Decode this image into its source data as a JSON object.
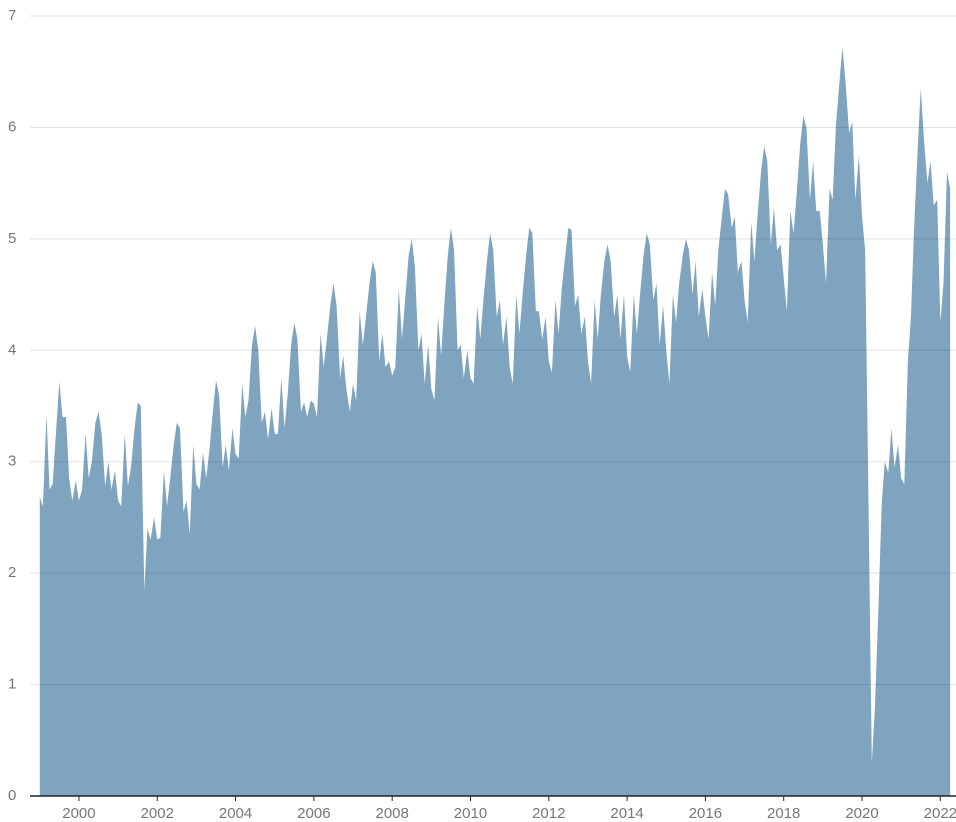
{
  "chart_data": {
    "type": "area",
    "color": "#7fa4c0",
    "grid": true,
    "xlim": [
      1998.75,
      2022.4
    ],
    "xticks": [
      2000,
      2002,
      2004,
      2006,
      2008,
      2010,
      2012,
      2014,
      2016,
      2018,
      2020,
      2022
    ],
    "ylim": [
      0,
      7
    ],
    "yticks": [
      0,
      1,
      2,
      3,
      4,
      5,
      6,
      7
    ],
    "x": [
      1999.0,
      1999.08,
      1999.17,
      1999.25,
      1999.33,
      1999.42,
      1999.5,
      1999.58,
      1999.67,
      1999.75,
      1999.83,
      1999.92,
      2000.0,
      2000.08,
      2000.17,
      2000.25,
      2000.33,
      2000.42,
      2000.5,
      2000.58,
      2000.67,
      2000.75,
      2000.83,
      2000.92,
      2001.0,
      2001.08,
      2001.17,
      2001.25,
      2001.33,
      2001.42,
      2001.5,
      2001.58,
      2001.67,
      2001.75,
      2001.83,
      2001.92,
      2002.0,
      2002.08,
      2002.17,
      2002.25,
      2002.33,
      2002.42,
      2002.5,
      2002.58,
      2002.67,
      2002.75,
      2002.83,
      2002.92,
      2003.0,
      2003.08,
      2003.17,
      2003.25,
      2003.33,
      2003.42,
      2003.5,
      2003.58,
      2003.67,
      2003.75,
      2003.83,
      2003.92,
      2004.0,
      2004.08,
      2004.17,
      2004.25,
      2004.33,
      2004.42,
      2004.5,
      2004.58,
      2004.67,
      2004.75,
      2004.83,
      2004.92,
      2005.0,
      2005.08,
      2005.17,
      2005.25,
      2005.33,
      2005.42,
      2005.5,
      2005.58,
      2005.67,
      2005.75,
      2005.83,
      2005.92,
      2006.0,
      2006.08,
      2006.17,
      2006.25,
      2006.33,
      2006.42,
      2006.5,
      2006.58,
      2006.67,
      2006.75,
      2006.83,
      2006.92,
      2007.0,
      2007.08,
      2007.17,
      2007.25,
      2007.33,
      2007.42,
      2007.5,
      2007.58,
      2007.67,
      2007.75,
      2007.83,
      2007.92,
      2008.0,
      2008.08,
      2008.17,
      2008.25,
      2008.33,
      2008.42,
      2008.5,
      2008.58,
      2008.67,
      2008.75,
      2008.83,
      2008.92,
      2009.0,
      2009.08,
      2009.17,
      2009.25,
      2009.33,
      2009.42,
      2009.5,
      2009.58,
      2009.67,
      2009.75,
      2009.83,
      2009.92,
      2010.0,
      2010.08,
      2010.17,
      2010.25,
      2010.33,
      2010.42,
      2010.5,
      2010.58,
      2010.67,
      2010.75,
      2010.83,
      2010.92,
      2011.0,
      2011.08,
      2011.17,
      2011.25,
      2011.33,
      2011.42,
      2011.5,
      2011.58,
      2011.67,
      2011.75,
      2011.83,
      2011.92,
      2012.0,
      2012.08,
      2012.17,
      2012.25,
      2012.33,
      2012.42,
      2012.5,
      2012.58,
      2012.67,
      2012.75,
      2012.83,
      2012.92,
      2013.0,
      2013.08,
      2013.17,
      2013.25,
      2013.33,
      2013.42,
      2013.5,
      2013.58,
      2013.67,
      2013.75,
      2013.83,
      2013.92,
      2014.0,
      2014.08,
      2014.17,
      2014.25,
      2014.33,
      2014.42,
      2014.5,
      2014.58,
      2014.67,
      2014.75,
      2014.83,
      2014.92,
      2015.0,
      2015.08,
      2015.17,
      2015.25,
      2015.33,
      2015.42,
      2015.5,
      2015.58,
      2015.67,
      2015.75,
      2015.83,
      2015.92,
      2016.0,
      2016.08,
      2016.17,
      2016.25,
      2016.33,
      2016.42,
      2016.5,
      2016.58,
      2016.67,
      2016.75,
      2016.83,
      2016.92,
      2017.0,
      2017.08,
      2017.17,
      2017.25,
      2017.33,
      2017.42,
      2017.5,
      2017.58,
      2017.67,
      2017.75,
      2017.83,
      2017.92,
      2018.0,
      2018.08,
      2018.17,
      2018.25,
      2018.33,
      2018.42,
      2018.5,
      2018.58,
      2018.67,
      2018.75,
      2018.83,
      2018.92,
      2019.0,
      2019.08,
      2019.17,
      2019.25,
      2019.33,
      2019.42,
      2019.5,
      2019.58,
      2019.67,
      2019.75,
      2019.83,
      2019.92,
      2020.0,
      2020.08,
      2020.17,
      2020.25,
      2020.33,
      2020.42,
      2020.5,
      2020.58,
      2020.67,
      2020.75,
      2020.83,
      2020.92,
      2021.0,
      2021.08,
      2021.17,
      2021.25,
      2021.33,
      2021.42,
      2021.5,
      2021.58,
      2021.67,
      2021.75,
      2021.83,
      2021.92,
      2022.0,
      2022.08,
      2022.17,
      2022.25
    ],
    "values": [
      2.68,
      2.6,
      3.42,
      2.75,
      2.8,
      3.3,
      3.72,
      3.4,
      3.4,
      2.85,
      2.65,
      2.83,
      2.65,
      2.75,
      3.25,
      2.85,
      3.0,
      3.35,
      3.45,
      3.25,
      2.78,
      3.0,
      2.75,
      2.92,
      2.65,
      2.6,
      3.25,
      2.78,
      2.95,
      3.3,
      3.53,
      3.5,
      1.85,
      2.4,
      2.3,
      2.5,
      2.3,
      2.32,
      2.92,
      2.6,
      2.85,
      3.15,
      3.35,
      3.3,
      2.55,
      2.65,
      2.35,
      3.15,
      2.8,
      2.75,
      3.08,
      2.85,
      3.1,
      3.45,
      3.73,
      3.6,
      2.95,
      3.15,
      2.92,
      3.3,
      3.07,
      3.03,
      3.7,
      3.4,
      3.55,
      4.05,
      4.22,
      4.0,
      3.35,
      3.45,
      3.2,
      3.48,
      3.25,
      3.25,
      3.75,
      3.3,
      3.6,
      4.05,
      4.25,
      4.1,
      3.45,
      3.53,
      3.4,
      3.55,
      3.52,
      3.4,
      4.15,
      3.85,
      4.1,
      4.4,
      4.6,
      4.4,
      3.75,
      3.95,
      3.65,
      3.45,
      3.7,
      3.55,
      4.35,
      4.05,
      4.3,
      4.6,
      4.8,
      4.7,
      3.9,
      4.15,
      3.85,
      3.9,
      3.77,
      3.85,
      4.55,
      4.1,
      4.45,
      4.85,
      5.0,
      4.75,
      4.0,
      4.15,
      3.7,
      4.05,
      3.65,
      3.55,
      4.3,
      3.95,
      4.4,
      4.85,
      5.1,
      4.9,
      4.0,
      4.05,
      3.75,
      4.0,
      3.75,
      3.7,
      4.4,
      4.1,
      4.45,
      4.8,
      5.05,
      4.9,
      4.3,
      4.45,
      4.05,
      4.3,
      3.85,
      3.7,
      4.5,
      4.15,
      4.5,
      4.85,
      5.1,
      5.05,
      4.35,
      4.35,
      4.1,
      4.3,
      3.9,
      3.8,
      4.45,
      4.15,
      4.55,
      4.85,
      5.1,
      5.08,
      4.4,
      4.5,
      4.15,
      4.3,
      3.9,
      3.7,
      4.45,
      4.1,
      4.5,
      4.8,
      4.95,
      4.8,
      4.3,
      4.5,
      4.1,
      4.5,
      3.95,
      3.8,
      4.5,
      4.15,
      4.5,
      4.85,
      5.05,
      4.95,
      4.45,
      4.6,
      4.05,
      4.4,
      4.0,
      3.7,
      4.5,
      4.25,
      4.6,
      4.85,
      5.0,
      4.9,
      4.5,
      4.8,
      4.3,
      4.55,
      4.3,
      4.1,
      4.7,
      4.4,
      4.9,
      5.2,
      5.45,
      5.4,
      5.1,
      5.2,
      4.7,
      4.8,
      4.45,
      4.25,
      5.15,
      4.8,
      5.2,
      5.6,
      5.83,
      5.7,
      4.95,
      5.28,
      4.9,
      4.95,
      4.65,
      4.35,
      5.25,
      5.05,
      5.4,
      5.85,
      6.1,
      6.0,
      5.35,
      5.7,
      5.25,
      5.25,
      4.95,
      4.6,
      5.45,
      5.35,
      6.0,
      6.4,
      6.72,
      6.4,
      5.95,
      6.05,
      5.35,
      5.75,
      5.2,
      4.9,
      2.5,
      0.3,
      0.8,
      1.7,
      2.6,
      3.0,
      2.9,
      3.3,
      2.95,
      3.15,
      2.85,
      2.8,
      3.9,
      4.3,
      5.1,
      5.8,
      6.35,
      5.9,
      5.5,
      5.7,
      5.3,
      5.35,
      4.25,
      4.6,
      5.6,
      5.45
    ]
  }
}
